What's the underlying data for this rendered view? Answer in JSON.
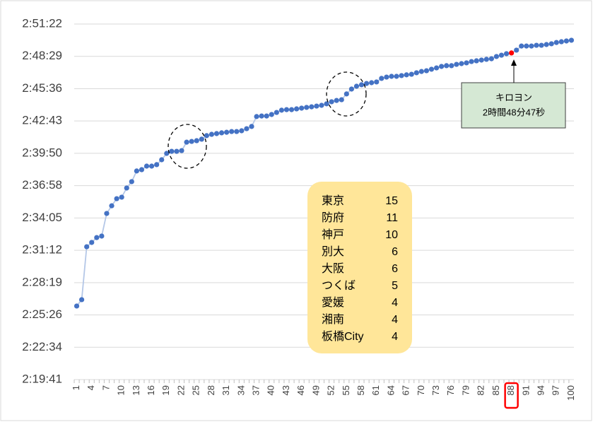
{
  "chart_data": {
    "type": "line",
    "categories": [
      1,
      2,
      3,
      4,
      5,
      6,
      7,
      8,
      9,
      10,
      11,
      12,
      13,
      14,
      15,
      16,
      17,
      18,
      19,
      20,
      21,
      22,
      23,
      24,
      25,
      26,
      27,
      28,
      29,
      30,
      31,
      32,
      33,
      34,
      35,
      36,
      37,
      38,
      39,
      40,
      41,
      42,
      43,
      44,
      45,
      46,
      47,
      48,
      49,
      50,
      51,
      52,
      53,
      54,
      55,
      56,
      57,
      58,
      59,
      60,
      61,
      62,
      63,
      64,
      65,
      66,
      67,
      68,
      69,
      70,
      71,
      72,
      73,
      74,
      75,
      76,
      77,
      78,
      79,
      80,
      81,
      82,
      83,
      84,
      85,
      86,
      87,
      88,
      89,
      90,
      91,
      92,
      93,
      94,
      95,
      96,
      97,
      98,
      99,
      100
    ],
    "x_label_step": 3,
    "series": [
      {
        "color": "#4472c4",
        "line_color": "#b4c7e7",
        "values": [
          8774,
          8808,
          9091,
          9114,
          9140,
          9148,
          9269,
          9310,
          9348,
          9356,
          9405,
          9439,
          9496,
          9503,
          9522,
          9522,
          9530,
          9556,
          9590,
          9601,
          9601,
          9605,
          9650,
          9654,
          9658,
          9666,
          9685,
          9692,
          9696,
          9700,
          9703,
          9707,
          9707,
          9711,
          9722,
          9734,
          9787,
          9790,
          9790,
          9798,
          9809,
          9821,
          9824,
          9824,
          9828,
          9832,
          9836,
          9839,
          9843,
          9847,
          9855,
          9866,
          9873,
          9877,
          9908,
          9934,
          9949,
          9957,
          9964,
          9968,
          9972,
          9991,
          9998,
          10002,
          10002,
          10006,
          10010,
          10013,
          10021,
          10028,
          10032,
          10040,
          10047,
          10055,
          10059,
          10059,
          10066,
          10070,
          10074,
          10081,
          10085,
          10089,
          10093,
          10096,
          10108,
          10115,
          10123,
          10127,
          10142,
          10164,
          10164,
          10164,
          10168,
          10168,
          10172,
          10176,
          10183,
          10187,
          10191,
          10195
        ]
      }
    ],
    "highlight": {
      "index": 87,
      "color": "#ff0000"
    },
    "ylim": [
      8380.8,
      10281.6
    ],
    "yticks": [
      {
        "value": 8380.8,
        "label": "2:19:41"
      },
      {
        "value": 8553.6,
        "label": "2:22:34"
      },
      {
        "value": 8726.4,
        "label": "2:25:26"
      },
      {
        "value": 8899.2,
        "label": "2:28:19"
      },
      {
        "value": 9072,
        "label": "2:31:12"
      },
      {
        "value": 9244.8,
        "label": "2:34:05"
      },
      {
        "value": 9417.6,
        "label": "2:36:58"
      },
      {
        "value": 9590.4,
        "label": "2:39:50"
      },
      {
        "value": 9763.2,
        "label": "2:42:43"
      },
      {
        "value": 9936,
        "label": "2:45:36"
      },
      {
        "value": 10108.8,
        "label": "2:48:29"
      },
      {
        "value": 10281.6,
        "label": "2:51:22"
      }
    ],
    "grid": true,
    "annotation": {
      "lines": [
        "キロヨン",
        "2時間48分47秒"
      ]
    },
    "legend_table": {
      "rows": [
        [
          "東京",
          15
        ],
        [
          "防府",
          11
        ],
        [
          "神戸",
          10
        ],
        [
          "別大",
          6
        ],
        [
          "大阪",
          6
        ],
        [
          "つくば",
          5
        ],
        [
          "愛媛",
          4
        ],
        [
          "湘南",
          4
        ],
        [
          "板橋City",
          4
        ]
      ]
    }
  }
}
